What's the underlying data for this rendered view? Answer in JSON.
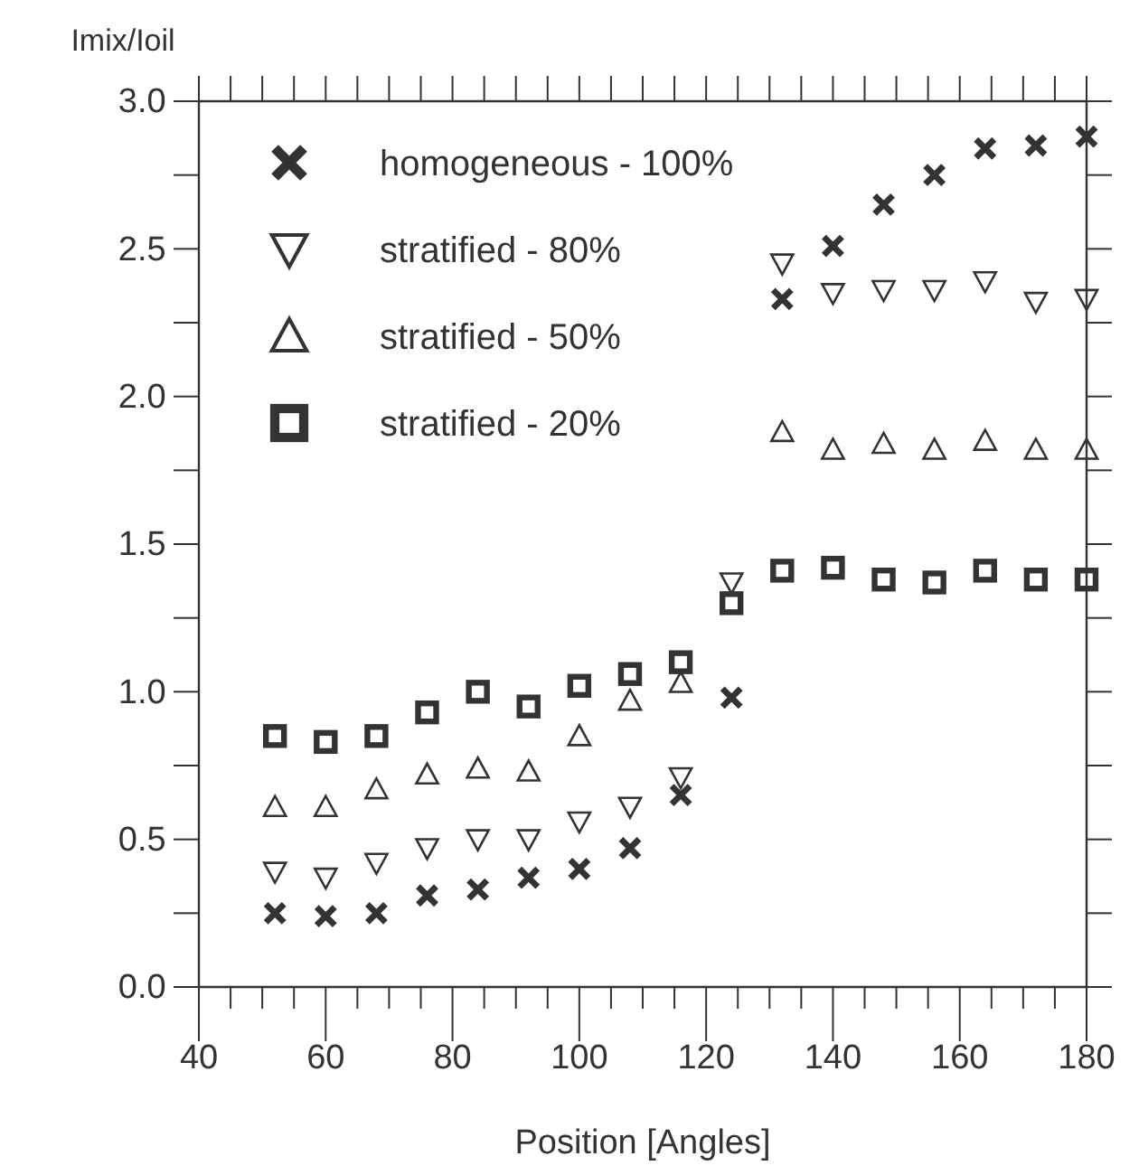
{
  "chart_data": {
    "type": "scatter",
    "xlabel": "Position [Angles]",
    "ylabel": "Imix/Ioil",
    "x": [
      52,
      60,
      68,
      76,
      84,
      92,
      100,
      108,
      116,
      124,
      132,
      140,
      148,
      156,
      164,
      172,
      180
    ],
    "series": [
      {
        "name": "homogeneous - 100%",
        "color": "#333333",
        "marker": "cross",
        "values": [
          0.25,
          0.24,
          0.25,
          0.31,
          0.33,
          0.37,
          0.4,
          0.47,
          0.65,
          0.98,
          2.33,
          2.51,
          2.65,
          2.75,
          2.84,
          2.85,
          2.88
        ]
      },
      {
        "name": "stratified - 80%",
        "color": "#333333",
        "marker": "triangle-down",
        "values": [
          0.39,
          0.37,
          0.42,
          0.47,
          0.5,
          0.5,
          0.56,
          0.61,
          0.71,
          1.37,
          2.45,
          2.35,
          2.36,
          2.36,
          2.39,
          2.32,
          2.33
        ]
      },
      {
        "name": "stratified - 50%",
        "color": "#333333",
        "marker": "triangle",
        "values": [
          0.61,
          0.61,
          0.67,
          0.72,
          0.74,
          0.73,
          0.85,
          0.97,
          1.03,
          null,
          1.88,
          1.82,
          1.84,
          1.82,
          1.85,
          1.82,
          1.82
        ]
      },
      {
        "name": "stratified - 20%",
        "color": "#333333",
        "marker": "square",
        "values": [
          0.85,
          0.83,
          0.85,
          0.93,
          1.0,
          0.95,
          1.02,
          1.06,
          1.1,
          1.3,
          1.41,
          1.42,
          1.38,
          1.37,
          1.41,
          1.38,
          1.38
        ]
      }
    ],
    "xlim": [
      40,
      180
    ],
    "ylim": [
      0,
      3
    ],
    "xticks": [
      40,
      {
        "value": 45,
        "label": null
      },
      {
        "value": 50,
        "label": null
      },
      {
        "value": 55,
        "label": null
      },
      60,
      {
        "value": 65,
        "label": null
      },
      {
        "value": 70,
        "label": null
      },
      {
        "value": 75,
        "label": null
      },
      80,
      {
        "value": 85,
        "label": null
      },
      {
        "value": 90,
        "label": null
      },
      {
        "value": 95,
        "label": null
      },
      100,
      {
        "value": 105,
        "label": null
      },
      {
        "value": 110,
        "label": null
      },
      {
        "value": 115,
        "label": null
      },
      120,
      {
        "value": 125,
        "label": null
      },
      {
        "value": 130,
        "label": null
      },
      {
        "value": 135,
        "label": null
      },
      140,
      {
        "value": 145,
        "label": null
      },
      {
        "value": 150,
        "label": null
      },
      {
        "value": 155,
        "label": null
      },
      160,
      {
        "value": 165,
        "label": null
      },
      {
        "value": 170,
        "label": null
      },
      {
        "value": 175,
        "label": null
      },
      180
    ],
    "yticks": [
      {
        "value": 0,
        "label": "0.0"
      },
      {
        "value": 0.25,
        "label": null
      },
      {
        "value": 0.5,
        "label": "0.5"
      },
      {
        "value": 0.75,
        "label": null
      },
      {
        "value": 1,
        "label": "1.0"
      },
      {
        "value": 1.25,
        "label": null
      },
      {
        "value": 1.5,
        "label": "1.5"
      },
      {
        "value": 1.75,
        "label": null
      },
      {
        "value": 2,
        "label": "2.0"
      },
      {
        "value": 2.25,
        "label": null
      },
      {
        "value": 2.5,
        "label": "2.5"
      },
      {
        "value": 2.75,
        "label": null
      },
      {
        "value": 3,
        "label": "3.0"
      }
    ],
    "legend": "top left",
    "grid": false
  }
}
